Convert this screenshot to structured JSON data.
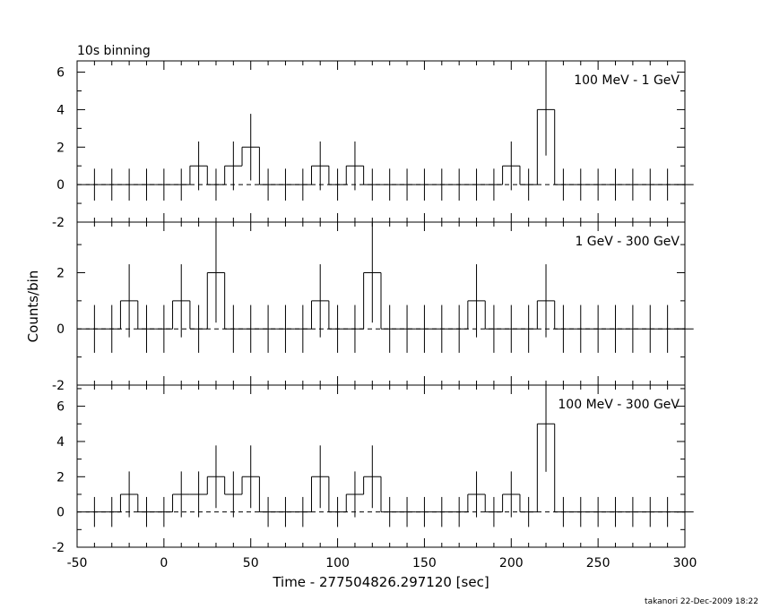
{
  "header": {
    "title": "10s binning"
  },
  "footer": {
    "credit": "takanori 22-Dec-2009 18:22"
  },
  "chart_data": {
    "type": "line",
    "title": "10s binning",
    "xlabel": "Time - 277504826.297120 [sec]",
    "ylabel": "Counts/bin",
    "xlim": [
      -50,
      300
    ],
    "x_ticks": [
      -50,
      0,
      50,
      100,
      150,
      200,
      250,
      300
    ],
    "bin_width": 10,
    "bin_starts": [
      -45,
      -35,
      -25,
      -15,
      -5,
      5,
      15,
      25,
      35,
      45,
      55,
      65,
      75,
      85,
      95,
      105,
      115,
      125,
      135,
      145,
      155,
      165,
      175,
      185,
      195,
      205,
      215,
      225,
      235,
      245,
      255,
      265,
      275,
      285,
      295
    ],
    "panels": [
      {
        "label": "100 MeV - 1 GeV",
        "ylim": [
          -2,
          6.6
        ],
        "y_ticks": [
          -2,
          0,
          2,
          4,
          6
        ],
        "values": [
          0,
          0,
          0,
          0,
          0,
          0,
          1,
          0,
          1,
          2,
          0,
          0,
          0,
          1,
          0,
          1,
          0,
          0,
          0,
          0,
          0,
          0,
          0,
          0,
          1,
          0,
          4,
          0,
          0,
          0,
          0,
          0,
          0,
          0,
          0
        ]
      },
      {
        "label": "1 GeV - 300 GeV",
        "ylim": [
          -2,
          3.8
        ],
        "y_ticks": [
          -2,
          0,
          2
        ],
        "values": [
          0,
          0,
          1,
          0,
          0,
          1,
          0,
          2,
          0,
          0,
          0,
          0,
          0,
          1,
          0,
          0,
          2,
          0,
          0,
          0,
          0,
          0,
          1,
          0,
          0,
          0,
          1,
          0,
          0,
          0,
          0,
          0,
          0,
          0,
          0
        ]
      },
      {
        "label": "100 MeV - 300 GeV",
        "ylim": [
          -2,
          7.2
        ],
        "y_ticks": [
          -2,
          0,
          2,
          4,
          6
        ],
        "values": [
          0,
          0,
          1,
          0,
          0,
          1,
          1,
          2,
          1,
          2,
          0,
          0,
          0,
          2,
          0,
          1,
          2,
          0,
          0,
          0,
          0,
          0,
          1,
          0,
          1,
          0,
          5,
          0,
          0,
          0,
          0,
          0,
          0,
          0,
          0
        ]
      }
    ]
  }
}
